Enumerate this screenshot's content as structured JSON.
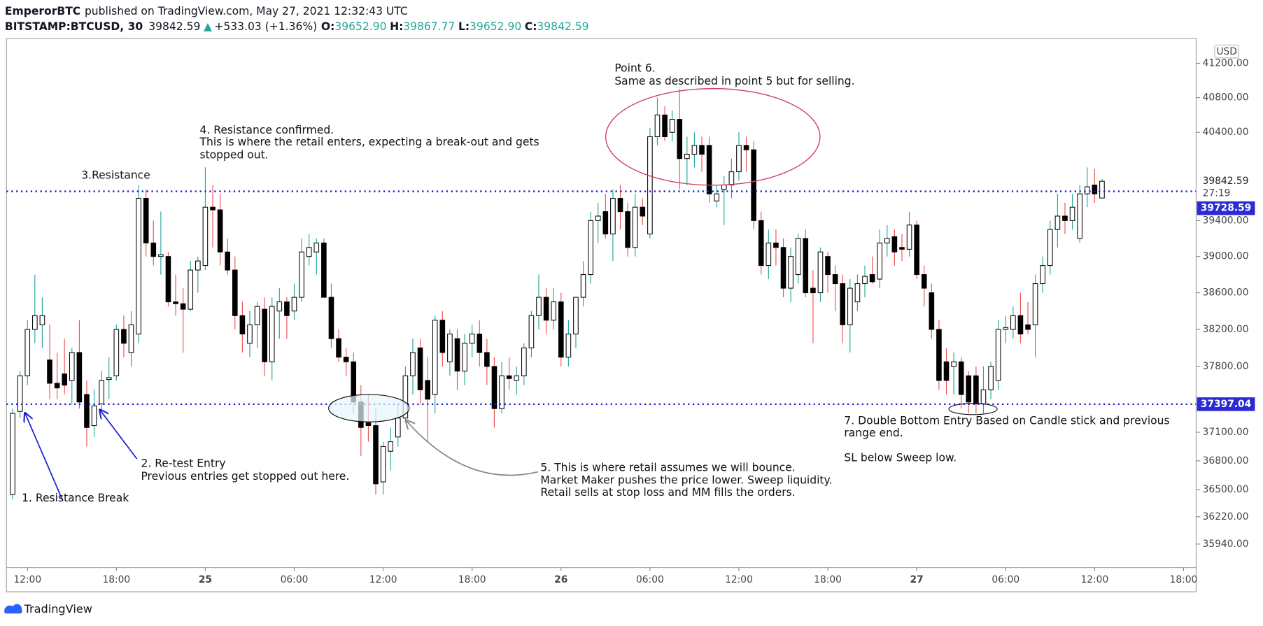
{
  "header": {
    "author": "EmperorBTC",
    "published": "published on TradingView.com, May 27, 2021 12:32:43 UTC",
    "symbol": "BITSTAMP:BTCUSD, 30",
    "last": "39842.59",
    "arrow": "▲",
    "change": "+533.03 (+1.36%)",
    "o_label": "O:",
    "o": "39652.90",
    "h_label": "H:",
    "h": "39867.77",
    "l_label": "L:",
    "l": "39652.90",
    "c_label": "C:",
    "c": "39842.59"
  },
  "footer": {
    "brand": "TradingView"
  },
  "annotations": [
    {
      "lines": [
        "1. Resistance Break"
      ]
    },
    {
      "lines": [
        "2. Re-test Entry",
        "Previous entries get stopped out here."
      ]
    },
    {
      "lines": [
        "3.Resistance"
      ]
    },
    {
      "lines": [
        "4. Resistance confirmed.",
        "This is where the retail enters, expecting a break-out and gets",
        "stopped out."
      ]
    },
    {
      "lines": [
        "5. This is where retail assumes we will  bounce.",
        "Market Maker pushes the price lower. Sweep liquidity.",
        "Retail sells at stop loss and MM fills the orders."
      ]
    },
    {
      "lines": [
        "Point 6.",
        "Same as described in  point 5 but for selling."
      ]
    },
    {
      "lines": [
        "7. Double Bottom  Entry Based on Candle stick and previous",
        "range end.",
        "SL below Sweep low."
      ]
    }
  ],
  "chart_data": {
    "type": "candlestick",
    "currency": "USD",
    "log_scale": true,
    "grid": false,
    "up_color": "#ffffff",
    "down_color": "#000000",
    "up_wick": "#26a69a",
    "down_wick": "#ef5350",
    "line_color": "#1f1fd1",
    "ylim": [
      35700,
      41490
    ],
    "yticks": [
      {
        "value": 41200,
        "label": "41200.00"
      },
      {
        "value": 40800,
        "label": "40800.00"
      },
      {
        "value": 40400,
        "label": "40400.00"
      },
      {
        "value": 39400,
        "label": "39400.00"
      },
      {
        "value": 39000,
        "label": "39000.00"
      },
      {
        "value": 38600,
        "label": "38600.00"
      },
      {
        "value": 38200,
        "label": "38200.00"
      },
      {
        "value": 37800,
        "label": "37800.00"
      },
      {
        "value": 37100,
        "label": "37100.00"
      },
      {
        "value": 36800,
        "label": "36800.00"
      },
      {
        "value": 36500,
        "label": "36500.00"
      },
      {
        "value": 36220,
        "label": "36220.00"
      },
      {
        "value": 35940,
        "label": "35940.00"
      }
    ],
    "xlim": [
      "24 10:35",
      "27 18:51"
    ],
    "xticks": [
      {
        "value": "24 12:00",
        "label": "12:00"
      },
      {
        "value": "24 18:00",
        "label": "18:00"
      },
      {
        "value": "25 00:00",
        "label": "25"
      },
      {
        "value": "25 06:00",
        "label": "06:00"
      },
      {
        "value": "25 12:00",
        "label": "12:00"
      },
      {
        "value": "25 18:00",
        "label": "18:00"
      },
      {
        "value": "26 00:00",
        "label": "26"
      },
      {
        "value": "26 06:00",
        "label": "06:00"
      },
      {
        "value": "26 12:00",
        "label": "12:00"
      },
      {
        "value": "26 18:00",
        "label": "18:00"
      },
      {
        "value": "27 00:00",
        "label": "27"
      },
      {
        "value": "27 06:00",
        "label": "06:00"
      },
      {
        "value": "27 12:00",
        "label": "12:00"
      },
      {
        "value": "27 18:00",
        "label": "18:00"
      }
    ],
    "price_lines": [
      {
        "value": 39728.59
      },
      {
        "value": 37397.04
      }
    ],
    "last_price": 39842.59,
    "countdown": "27:19",
    "x": [
      "24 11:00",
      "24 11:30",
      "24 12:00",
      "24 12:30",
      "24 13:00",
      "24 13:30",
      "24 14:00",
      "24 14:30",
      "24 15:00",
      "24 15:30",
      "24 16:00",
      "24 16:30",
      "24 17:00",
      "24 17:30",
      "24 18:00",
      "24 18:30",
      "24 19:00",
      "24 19:30",
      "24 20:00",
      "24 20:30",
      "24 21:00",
      "24 21:30",
      "24 22:00",
      "24 22:30",
      "24 23:00",
      "24 23:30",
      "25 00:00",
      "25 00:30",
      "25 01:00",
      "25 01:30",
      "25 02:00",
      "25 02:30",
      "25 03:00",
      "25 03:30",
      "25 04:00",
      "25 04:30",
      "25 05:00",
      "25 05:30",
      "25 06:00",
      "25 06:30",
      "25 07:00",
      "25 07:30",
      "25 08:00",
      "25 08:30",
      "25 09:00",
      "25 09:30",
      "25 10:00",
      "25 10:30",
      "25 11:00",
      "25 11:30",
      "25 12:00",
      "25 12:30",
      "25 13:00",
      "25 13:30",
      "25 14:00",
      "25 14:30",
      "25 15:00",
      "25 15:30",
      "25 16:00",
      "25 16:30",
      "25 17:00",
      "25 17:30",
      "25 18:00",
      "25 18:30",
      "25 19:00",
      "25 19:30",
      "25 20:00",
      "25 20:30",
      "25 21:00",
      "25 21:30",
      "25 22:00",
      "25 22:30",
      "25 23:00",
      "25 23:30",
      "26 00:00",
      "26 00:30",
      "26 01:00",
      "26 01:30",
      "26 02:00",
      "26 02:30",
      "26 03:00",
      "26 03:30",
      "26 04:00",
      "26 04:30",
      "26 05:00",
      "26 05:30",
      "26 06:00",
      "26 06:30",
      "26 07:00",
      "26 07:30",
      "26 08:00",
      "26 08:30",
      "26 09:00",
      "26 09:30",
      "26 10:00",
      "26 10:30",
      "26 11:00",
      "26 11:30",
      "26 12:00",
      "26 12:30",
      "26 13:00",
      "26 13:30",
      "26 14:00",
      "26 14:30",
      "26 15:00",
      "26 15:30",
      "26 16:00",
      "26 16:30",
      "26 17:00",
      "26 17:30",
      "26 18:00",
      "26 18:30",
      "26 19:00",
      "26 19:30",
      "26 20:00",
      "26 20:30",
      "26 21:00",
      "26 21:30",
      "26 22:00",
      "26 22:30",
      "26 23:00",
      "26 23:30",
      "27 00:00",
      "27 00:30",
      "27 01:00",
      "27 01:30",
      "27 02:00",
      "27 02:30",
      "27 03:00",
      "27 03:30",
      "27 04:00",
      "27 04:30",
      "27 05:00",
      "27 05:30",
      "27 06:00",
      "27 06:30",
      "27 07:00",
      "27 07:30",
      "27 08:00",
      "27 08:30",
      "27 09:00",
      "27 09:30",
      "27 10:00",
      "27 10:30",
      "27 11:00",
      "27 11:30",
      "27 12:00",
      "27 12:30"
    ],
    "open": [
      36450,
      37320,
      37700,
      38200,
      38250,
      37870,
      37620,
      37720,
      37650,
      37950,
      37500,
      37170,
      37400,
      37660,
      37700,
      38200,
      37950,
      38150,
      39650,
      39150,
      39000,
      39000,
      38500,
      38480,
      38420,
      38850,
      38900,
      39550,
      39520,
      39050,
      38850,
      38350,
      38050,
      38250,
      38420,
      37850,
      38400,
      38500,
      38400,
      38550,
      39000,
      39050,
      39150,
      38550,
      38100,
      37900,
      37850,
      37420,
      37200,
      37170,
      36580,
      36900,
      37050,
      37250,
      37700,
      38000,
      37650,
      37500,
      38300,
      37850,
      38100,
      37750,
      38050,
      38150,
      37950,
      37800,
      37350,
      37700,
      37650,
      37700,
      38000,
      38350,
      38550,
      38300,
      38500,
      37900,
      38150,
      38550,
      38800,
      39400,
      39500,
      39250,
      39650,
      39500,
      39100,
      39550,
      39250,
      40350,
      40600,
      40400,
      40550,
      40100,
      40150,
      40250,
      40250,
      39620,
      39750,
      39800,
      39950,
      40250,
      40200,
      39400,
      38900,
      39150,
      39100,
      38650,
      38800,
      39200,
      38650,
      38600,
      39000,
      38800,
      38700,
      38250,
      38500,
      38700,
      38800,
      38750,
      39150,
      39220,
      39100,
      39080,
      39350,
      38800,
      38600,
      38200,
      37850,
      37800,
      37850,
      37700,
      37700,
      37400,
      37550,
      37650,
      38200,
      38200,
      38350,
      38250,
      38250,
      38700,
      38900,
      39300,
      39450,
      39400,
      39200,
      39700,
      39800,
      39652.9
    ],
    "high": [
      37350,
      37750,
      38300,
      38800,
      38550,
      38250,
      37950,
      38100,
      38000,
      38300,
      37650,
      37550,
      37750,
      37900,
      38250,
      38350,
      38400,
      39800,
      39750,
      39400,
      39500,
      39050,
      38800,
      38650,
      38950,
      39000,
      40000,
      39800,
      39700,
      39200,
      39000,
      38500,
      38400,
      38500,
      38550,
      38550,
      38650,
      38550,
      38700,
      39200,
      39250,
      39200,
      39200,
      38700,
      38200,
      38000,
      37950,
      37600,
      37500,
      37350,
      37000,
      37150,
      37400,
      37800,
      38100,
      38100,
      37900,
      38350,
      38400,
      38200,
      38200,
      38150,
      38250,
      38300,
      38100,
      37900,
      37850,
      37900,
      37800,
      38050,
      38400,
      38800,
      38650,
      38650,
      38600,
      38300,
      38550,
      38950,
      39500,
      39600,
      39700,
      39750,
      39800,
      39600,
      39700,
      39650,
      40450,
      40800,
      40700,
      40650,
      40900,
      40350,
      40400,
      40350,
      40350,
      39800,
      39900,
      40100,
      40400,
      40350,
      40300,
      39500,
      39300,
      39300,
      39200,
      39100,
      39250,
      39300,
      38850,
      39100,
      39050,
      38900,
      38800,
      38750,
      38800,
      38900,
      39000,
      39300,
      39350,
      39300,
      39250,
      39500,
      39400,
      38900,
      38700,
      38300,
      38000,
      37950,
      37900,
      37750,
      37800,
      37800,
      37850,
      38300,
      38350,
      38450,
      38600,
      38500,
      38800,
      39000,
      39400,
      39700,
      39600,
      39700,
      39800,
      40000,
      39980,
      39867.77
    ],
    "low": [
      36400,
      37250,
      37600,
      38050,
      38000,
      37450,
      37450,
      37500,
      37400,
      37350,
      36950,
      37050,
      37300,
      37450,
      37650,
      37900,
      37800,
      38050,
      39000,
      38900,
      38800,
      38450,
      38350,
      37950,
      38400,
      38600,
      38850,
      39100,
      38900,
      38800,
      38200,
      37950,
      37900,
      38000,
      37700,
      37650,
      38100,
      38100,
      38300,
      38500,
      38900,
      38800,
      38550,
      38000,
      37850,
      37700,
      37300,
      36850,
      37000,
      36450,
      36450,
      36700,
      36950,
      37200,
      37500,
      37400,
      37000,
      37300,
      37800,
      37700,
      37550,
      37600,
      37900,
      37800,
      37600,
      37150,
      37300,
      37550,
      37500,
      37600,
      37900,
      38200,
      38150,
      38200,
      37800,
      37800,
      38000,
      38450,
      38700,
      39150,
      39200,
      38950,
      39300,
      39000,
      39000,
      39350,
      39200,
      40250,
      40300,
      40300,
      39750,
      39800,
      40000,
      39950,
      39600,
      39550,
      39350,
      39650,
      39850,
      39950,
      39300,
      38800,
      38750,
      38900,
      38550,
      38500,
      38700,
      38550,
      38050,
      38500,
      38600,
      38400,
      38050,
      37950,
      38400,
      38550,
      38700,
      38650,
      39000,
      38900,
      38950,
      39000,
      38750,
      38450,
      38100,
      37550,
      37500,
      37500,
      37350,
      37300,
      37300,
      37300,
      37450,
      37550,
      38050,
      38100,
      38050,
      38150,
      37900,
      38600,
      38800,
      39100,
      39250,
      39300,
      39150,
      39550,
      39600,
      39652.9
    ],
    "close": [
      37300,
      37700,
      38200,
      38350,
      38350,
      37620,
      37570,
      37600,
      37950,
      37420,
      37150,
      37380,
      37650,
      37680,
      38200,
      38050,
      38250,
      39650,
      39150,
      39000,
      39020,
      38500,
      38480,
      38420,
      38850,
      38950,
      39550,
      39520,
      39050,
      38850,
      38350,
      38150,
      38250,
      38450,
      37850,
      38450,
      38500,
      38350,
      38550,
      39050,
      39100,
      39150,
      38550,
      38100,
      37900,
      37850,
      37420,
      37150,
      37170,
      36560,
      36950,
      37000,
      37250,
      37700,
      37950,
      37550,
      37450,
      38300,
      37950,
      38150,
      37750,
      38050,
      38150,
      37950,
      37800,
      37350,
      37700,
      37670,
      37700,
      38000,
      38350,
      38550,
      38300,
      38500,
      37900,
      38150,
      38550,
      38800,
      39400,
      39450,
      39250,
      39650,
      39500,
      39100,
      39550,
      39450,
      40350,
      40600,
      40350,
      40550,
      40100,
      40150,
      40250,
      40150,
      39700,
      39700,
      39800,
      39950,
      40250,
      40200,
      39400,
      38900,
      39150,
      39100,
      38650,
      39000,
      39200,
      38600,
      38600,
      39050,
      38800,
      38700,
      38250,
      38650,
      38700,
      38780,
      38720,
      39150,
      39200,
      39050,
      39080,
      39350,
      38800,
      38650,
      38200,
      37650,
      37650,
      37850,
      37500,
      37420,
      37400,
      37550,
      37800,
      38200,
      38220,
      38350,
      38150,
      38200,
      38700,
      38900,
      39300,
      39450,
      39400,
      39550,
      39700,
      39780,
      39700,
      39842.59
    ]
  }
}
